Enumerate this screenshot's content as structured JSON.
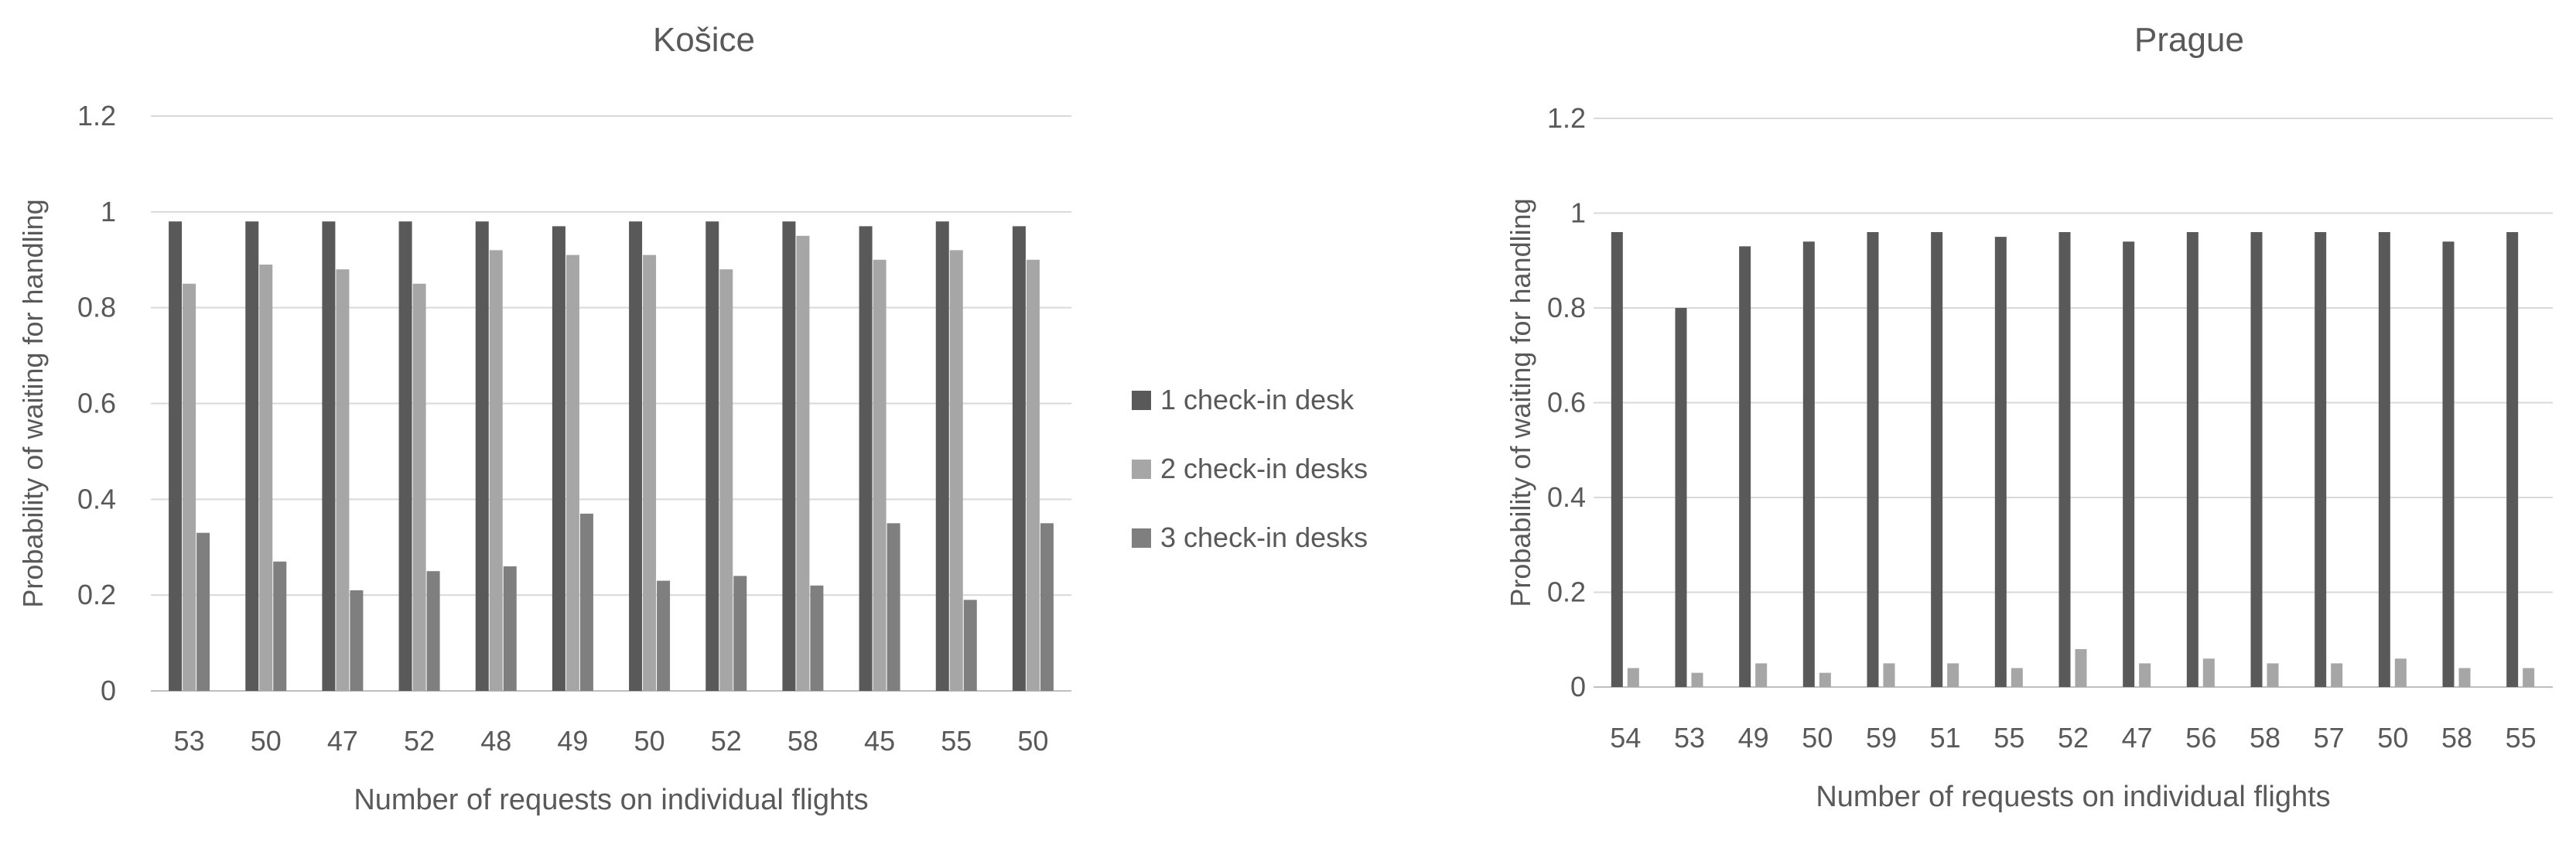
{
  "legend": {
    "entries": [
      {
        "label": "1 check-in desk",
        "color": "#595959"
      },
      {
        "label": "2 check-in desks",
        "color": "#a6a6a6"
      },
      {
        "label": "3 check-in desks",
        "color": "#7f7f7f"
      }
    ]
  },
  "chart_data": [
    {
      "type": "bar",
      "title": "Košice",
      "xlabel": "Number of requests on individual flights",
      "ylabel": "Probability of waiting for handling",
      "ylim": [
        0,
        1.2
      ],
      "yticks": [
        "0",
        "0.2",
        "0.4",
        "0.6",
        "0.8",
        "1",
        "1.2"
      ],
      "grid": true,
      "legend_position": "right",
      "categories": [
        "53",
        "50",
        "47",
        "52",
        "48",
        "49",
        "50",
        "52",
        "58",
        "45",
        "55",
        "50"
      ],
      "series": [
        {
          "name": "1 check-in desk",
          "color": "#595959",
          "values": [
            0.98,
            0.98,
            0.98,
            0.98,
            0.98,
            0.97,
            0.98,
            0.98,
            0.98,
            0.97,
            0.98,
            0.97
          ]
        },
        {
          "name": "2 check-in desks",
          "color": "#a6a6a6",
          "values": [
            0.85,
            0.89,
            0.88,
            0.85,
            0.92,
            0.91,
            0.91,
            0.88,
            0.95,
            0.9,
            0.92,
            0.9
          ]
        },
        {
          "name": "3 check-in desks",
          "color": "#7f7f7f",
          "values": [
            0.33,
            0.27,
            0.21,
            0.25,
            0.26,
            0.37,
            0.23,
            0.24,
            0.22,
            0.35,
            0.19,
            0.35
          ]
        }
      ]
    },
    {
      "type": "bar",
      "title": "Prague",
      "xlabel": "Number of requests on individual flights",
      "ylabel": "Probability of waiting for handling",
      "ylim": [
        0,
        1.2
      ],
      "yticks": [
        "0",
        "0.2",
        "0.4",
        "0.6",
        "0.8",
        "1",
        "1.2"
      ],
      "grid": true,
      "categories": [
        "54",
        "53",
        "49",
        "50",
        "59",
        "51",
        "55",
        "52",
        "47",
        "56",
        "58",
        "57",
        "50",
        "58",
        "55"
      ],
      "series": [
        {
          "name": "1 check-in desk",
          "color": "#595959",
          "values": [
            0.96,
            0.8,
            0.93,
            0.94,
            0.96,
            0.96,
            0.95,
            0.96,
            0.94,
            0.96,
            0.96,
            0.96,
            0.96,
            0.94,
            0.96
          ]
        },
        {
          "name": "2 check-in desks",
          "color": "#a6a6a6",
          "values": [
            0.04,
            0.03,
            0.05,
            0.03,
            0.05,
            0.05,
            0.04,
            0.08,
            0.05,
            0.06,
            0.05,
            0.05,
            0.06,
            0.04,
            0.04
          ]
        },
        {
          "name": "3 check-in desks",
          "color": "#7f7f7f",
          "values": [
            0,
            0,
            0,
            0,
            0,
            0,
            0,
            0,
            0,
            0,
            0,
            0,
            0,
            0,
            0
          ]
        }
      ]
    }
  ]
}
